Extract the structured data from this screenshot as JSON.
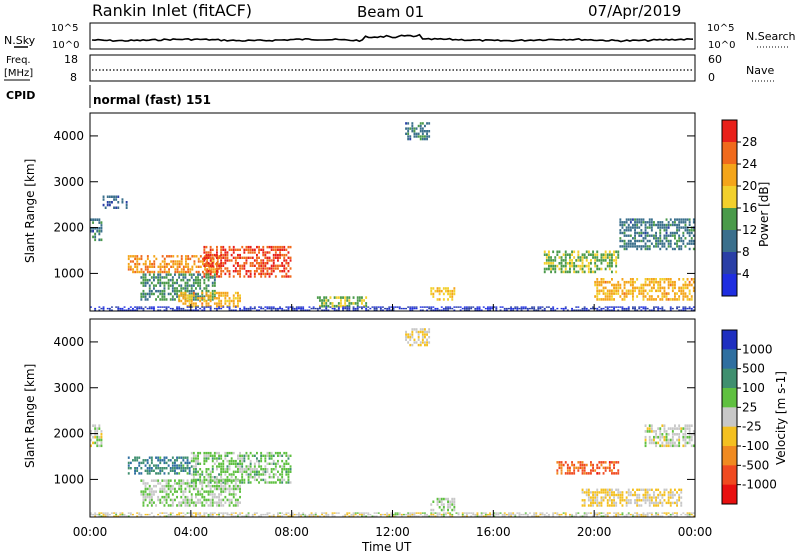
{
  "header": {
    "station": "Rankin Inlet (fitACF)",
    "beam": "Beam 01",
    "date": "07/Apr/2019"
  },
  "noise_panel": {
    "left_label": "N.Sky",
    "right_label": "N.Search",
    "ticks_left": [
      "10^5",
      "10^0"
    ],
    "ticks_right": [
      "10^5",
      "10^0"
    ]
  },
  "freq_panel": {
    "left_label_line1": "Freq.",
    "left_label_line2": "[MHz]",
    "left_ticks": [
      "18",
      "8"
    ],
    "right_label": "Nave",
    "right_ticks": [
      "60",
      "0"
    ]
  },
  "cpid_panel": {
    "label": "CPID",
    "text": "normal (fast) 151"
  },
  "axes": {
    "ylabel": "Slant Range [km]",
    "xlabel": "Time UT",
    "x_ticks": [
      "00:00",
      "04:00",
      "08:00",
      "12:00",
      "16:00",
      "20:00",
      "00:00"
    ],
    "y_ticks": [
      "4000",
      "3000",
      "2000",
      "1000"
    ]
  },
  "colorbars": {
    "power": {
      "label": "Power [dB]",
      "ticks": [
        "28",
        "24",
        "20",
        "16",
        "12",
        "8",
        "4"
      ],
      "colors": [
        "#e8201a",
        "#f06a1c",
        "#f4a51a",
        "#f2d02c",
        "#4a9a4a",
        "#3a6f8c",
        "#2a3fa6",
        "#1f2ee0"
      ]
    },
    "velocity": {
      "label": "Velocity [m s-1]",
      "ticks": [
        "1000",
        "500",
        "100",
        "25",
        "-25",
        "-100",
        "-500",
        "-1000"
      ],
      "colors": [
        "#1f2fc0",
        "#2f6fa0",
        "#3f8f6f",
        "#5fc040",
        "#c8c8c8",
        "#f4c020",
        "#f08a20",
        "#f04a20",
        "#e81010"
      ]
    }
  },
  "chart_data": [
    {
      "type": "heatmap",
      "title": "Power [dB]",
      "xlabel": "Time UT",
      "ylabel": "Slant Range [km]",
      "xlim": [
        "00:00",
        "24:00"
      ],
      "ylim": [
        180,
        4500
      ],
      "zlim": [
        0,
        30
      ],
      "regions": [
        {
          "t": [
            0.0,
            0.5
          ],
          "r": [
            1700,
            2200
          ],
          "v": 10
        },
        {
          "t": [
            0.5,
            1.5
          ],
          "r": [
            2400,
            2700
          ],
          "v": 8
        },
        {
          "t": [
            1.5,
            5.2
          ],
          "r": [
            1000,
            1400
          ],
          "v": 22
        },
        {
          "t": [
            4.5,
            8.0
          ],
          "r": [
            900,
            1600
          ],
          "v": 26
        },
        {
          "t": [
            2.0,
            5.0
          ],
          "r": [
            400,
            1000
          ],
          "v": 12
        },
        {
          "t": [
            3.5,
            6.0
          ],
          "r": [
            250,
            600
          ],
          "v": 20
        },
        {
          "t": [
            9.0,
            11.0
          ],
          "r": [
            250,
            500
          ],
          "v": 14
        },
        {
          "t": [
            13.5,
            14.5
          ],
          "r": [
            400,
            700
          ],
          "v": 18
        },
        {
          "t": [
            12.5,
            13.5
          ],
          "r": [
            3900,
            4300
          ],
          "v": 10
        },
        {
          "t": [
            18.0,
            21.0
          ],
          "r": [
            1000,
            1500
          ],
          "v": 14
        },
        {
          "t": [
            20.0,
            24.0
          ],
          "r": [
            400,
            900
          ],
          "v": 20
        },
        {
          "t": [
            21.0,
            24.0
          ],
          "r": [
            1500,
            2200
          ],
          "v": 10
        },
        {
          "t": [
            0.0,
            24.0
          ],
          "r": [
            180,
            280
          ],
          "v": 4
        }
      ]
    },
    {
      "type": "heatmap",
      "title": "Velocity [m s-1]",
      "xlabel": "Time UT",
      "ylabel": "Slant Range [km]",
      "xlim": [
        "00:00",
        "24:00"
      ],
      "ylim": [
        180,
        4500
      ],
      "zlim": [
        -1000,
        1000
      ],
      "regions": [
        {
          "t": [
            0.0,
            0.5
          ],
          "r": [
            1700,
            2200
          ],
          "v": 25
        },
        {
          "t": [
            1.5,
            4.0
          ],
          "r": [
            1100,
            1500
          ],
          "v": 500
        },
        {
          "t": [
            4.0,
            8.0
          ],
          "r": [
            900,
            1600
          ],
          "v": 200
        },
        {
          "t": [
            2.0,
            6.0
          ],
          "r": [
            400,
            1000
          ],
          "v": 100
        },
        {
          "t": [
            12.5,
            13.5
          ],
          "r": [
            3900,
            4300
          ],
          "v": -100
        },
        {
          "t": [
            13.5,
            14.5
          ],
          "r": [
            300,
            600
          ],
          "v": 80
        },
        {
          "t": [
            18.5,
            21.0
          ],
          "r": [
            1100,
            1400
          ],
          "v": -600
        },
        {
          "t": [
            19.5,
            23.5
          ],
          "r": [
            400,
            800
          ],
          "v": -100
        },
        {
          "t": [
            22.0,
            24.0
          ],
          "r": [
            1700,
            2200
          ],
          "v": 25
        },
        {
          "t": [
            0.0,
            24.0
          ],
          "r": [
            180,
            280
          ],
          "v": -25
        }
      ]
    }
  ]
}
